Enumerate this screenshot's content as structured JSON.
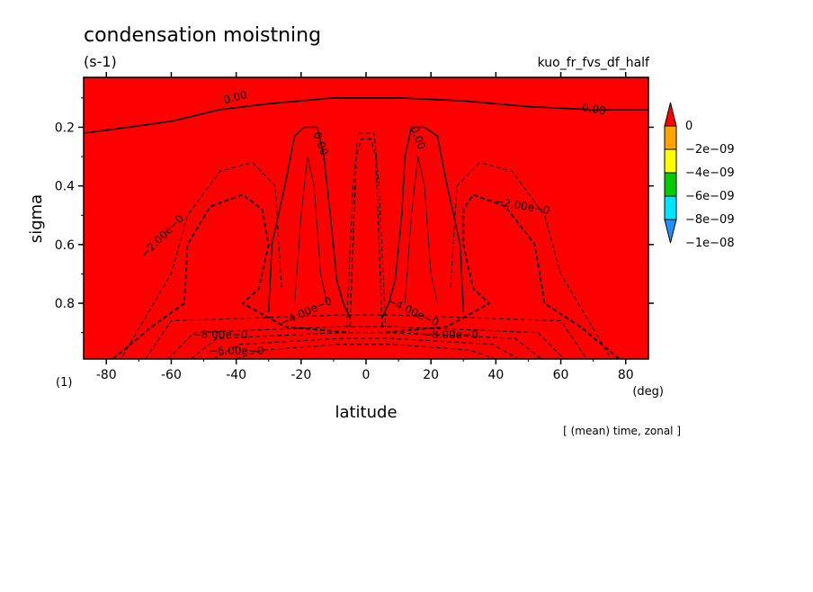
{
  "chart_data": {
    "type": "heatmap",
    "title": "condensation moistning",
    "units": "(s-1)",
    "run_label": "kuo_fr_fvs_df_half",
    "xlabel": "latitude",
    "ylabel": "sigma",
    "x_unit": "(deg)",
    "panel_index": "(1)",
    "footer": "[ (mean) time, zonal ]",
    "xlim": [
      -87,
      87
    ],
    "ylim": [
      0.99,
      0.03
    ],
    "x_ticks": [
      "-80",
      "-60",
      "-40",
      "-20",
      "0",
      "20",
      "40",
      "60",
      "80"
    ],
    "x_tick_values": [
      -80,
      -60,
      -40,
      -20,
      0,
      20,
      40,
      60,
      80
    ],
    "y_ticks": [
      "0.2",
      "0.4",
      "0.6",
      "0.8"
    ],
    "y_tick_values": [
      0.2,
      0.4,
      0.6,
      0.8
    ],
    "colorbar": {
      "labels": [
        "0",
        "−2e−09",
        "−4e−09",
        "−6e−09",
        "−8e−09",
        "−1e−08"
      ],
      "colors": [
        "#ff0000",
        "#ffa500",
        "#ffff00",
        "#00cc00",
        "#00e5ff",
        "#1e90ff"
      ]
    },
    "contour_labels": [
      "0.00",
      "0.00",
      "0.00",
      "0.00",
      "−2.00e−0",
      "−2.00e−0",
      "−4.00e−0",
      "−4.00e−0",
      "−8.00e−0",
      "−8.00e−0",
      "−6.00e−0"
    ],
    "fields": {
      "levels": [
        0,
        -2e-09,
        -4e-09,
        -6e-09,
        -8e-09,
        -1e-08
      ],
      "colors": [
        "#ff0000",
        "#ffa500",
        "#ffff00",
        "#00cc00",
        "#00e5ff",
        "#1e90ff"
      ],
      "regions": [
        {
          "level": "0",
          "shape": "top band",
          "points": [
            [
              -87,
              0.03
            ],
            [
              87,
              0.03
            ],
            [
              87,
              0.16
            ],
            [
              -87,
              0.16
            ]
          ]
        },
        {
          "level": "-2e-09",
          "shape": "background",
          "points": [
            [
              -87,
              0.1
            ],
            [
              -75,
              0.08
            ],
            [
              -30,
              0.06
            ],
            [
              0,
              0.05
            ],
            [
              30,
              0.06
            ],
            [
              75,
              0.08
            ],
            [
              87,
              0.1
            ],
            [
              87,
              0.99
            ],
            [
              -87,
              0.99
            ]
          ]
        },
        {
          "level": "0",
          "shape": "south tower",
          "points": [
            [
              -30,
              0.83
            ],
            [
              -29,
              0.6
            ],
            [
              -25,
              0.4
            ],
            [
              -22,
              0.23
            ],
            [
              -19,
              0.2
            ],
            [
              -15,
              0.2
            ],
            [
              -13,
              0.3
            ],
            [
              -11,
              0.5
            ],
            [
              -9,
              0.72
            ],
            [
              -7,
              0.8
            ],
            [
              -5,
              0.85
            ],
            [
              -20,
              0.87
            ]
          ]
        },
        {
          "level": "0",
          "shape": "north tower",
          "points": [
            [
              5,
              0.85
            ],
            [
              7,
              0.8
            ],
            [
              9,
              0.72
            ],
            [
              11,
              0.5
            ],
            [
              12,
              0.3
            ],
            [
              14,
              0.2
            ],
            [
              18,
              0.2
            ],
            [
              22,
              0.23
            ],
            [
              25,
              0.4
            ],
            [
              29,
              0.6
            ],
            [
              30,
              0.83
            ],
            [
              20,
              0.87
            ]
          ]
        },
        {
          "level": "-4e-09",
          "shape": "south lobe",
          "points": [
            [
              -78,
              0.99
            ],
            [
              -75,
              0.95
            ],
            [
              -65,
              0.88
            ],
            [
              -55,
              0.8
            ],
            [
              -55,
              0.6
            ],
            [
              -48,
              0.47
            ],
            [
              -38,
              0.43
            ],
            [
              -32,
              0.48
            ],
            [
              -30,
              0.6
            ],
            [
              -33,
              0.75
            ],
            [
              -38,
              0.8
            ],
            [
              -25,
              0.88
            ],
            [
              -5,
              0.9
            ],
            [
              -5,
              0.99
            ]
          ]
        },
        {
          "level": "-4e-09",
          "shape": "north lobe",
          "points": [
            [
              78,
              0.99
            ],
            [
              75,
              0.95
            ],
            [
              65,
              0.88
            ],
            [
              55,
              0.8
            ],
            [
              52,
              0.6
            ],
            [
              43,
              0.47
            ],
            [
              33,
              0.43
            ],
            [
              30,
              0.48
            ],
            [
              30,
              0.6
            ],
            [
              33,
              0.75
            ],
            [
              38,
              0.8
            ],
            [
              25,
              0.88
            ],
            [
              5,
              0.9
            ],
            [
              5,
              0.99
            ]
          ]
        },
        {
          "level": "-6e-09",
          "shape": "near-surface band",
          "points": [
            [
              -72,
              0.99
            ],
            [
              -68,
              0.95
            ],
            [
              -58,
              0.91
            ],
            [
              -30,
              0.9
            ],
            [
              30,
              0.9
            ],
            [
              58,
              0.91
            ],
            [
              68,
              0.95
            ],
            [
              72,
              0.99
            ]
          ]
        },
        {
          "level": "-8e-09",
          "shape": "near-surface band",
          "points": [
            [
              -65,
              0.99
            ],
            [
              -58,
              0.94
            ],
            [
              -40,
              0.92
            ],
            [
              40,
              0.92
            ],
            [
              58,
              0.94
            ],
            [
              65,
              0.99
            ]
          ]
        },
        {
          "level": "-1e-08",
          "shape": "inner band",
          "points": [
            [
              -55,
              0.99
            ],
            [
              -50,
              0.96
            ],
            [
              -30,
              0.94
            ],
            [
              30,
              0.94
            ],
            [
              50,
              0.96
            ],
            [
              55,
              0.99
            ]
          ]
        },
        {
          "level": "-4e-09",
          "shape": "equatorial column",
          "points": [
            [
              -5,
              0.88
            ],
            [
              -3,
              0.3
            ],
            [
              -1.5,
              0.24
            ],
            [
              1.5,
              0.24
            ],
            [
              3,
              0.3
            ],
            [
              5,
              0.88
            ]
          ]
        },
        {
          "level": "-6e-09",
          "shape": "equatorial column",
          "points": [
            [
              -3.5,
              0.88
            ],
            [
              -2,
              0.32
            ],
            [
              2,
              0.32
            ],
            [
              3.5,
              0.88
            ]
          ]
        },
        {
          "level": "-8e-09",
          "shape": "equatorial column",
          "points": [
            [
              -2.5,
              0.88
            ],
            [
              -1.5,
              0.36
            ],
            [
              1.5,
              0.36
            ],
            [
              2.5,
              0.88
            ]
          ]
        },
        {
          "level": "-1e-08",
          "shape": "equatorial column",
          "points": [
            [
              -1.5,
              0.9
            ],
            [
              -1,
              0.4
            ],
            [
              1,
              0.4
            ],
            [
              1.5,
              0.9
            ]
          ]
        }
      ]
    }
  }
}
